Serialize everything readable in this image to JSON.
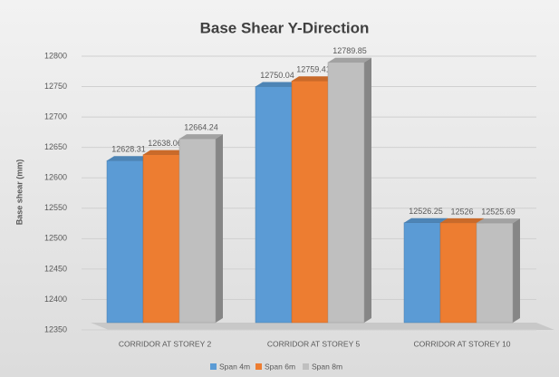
{
  "chart_data": {
    "type": "bar",
    "title": "Base Shear Y-Direction",
    "y_label": "Base shear (mm)",
    "categories": [
      "CORRIDOR AT STOREY 2",
      "CORRIDOR AT STOREY 5",
      "CORRIDOR AT STOREY 10"
    ],
    "series": [
      {
        "name": "Span 4m",
        "color": "#5b9bd5",
        "values": [
          12628.31,
          12750.04,
          12526.25
        ]
      },
      {
        "name": "Span 6m",
        "color": "#ed7d31",
        "values": [
          12638.06,
          12759.41,
          12526
        ]
      },
      {
        "name": "Span 8m",
        "color": "#bfbfbf",
        "values": [
          12664.24,
          12789.85,
          12525.69
        ]
      }
    ],
    "ylim": [
      12350,
      12800
    ],
    "yticks": [
      12350,
      12400,
      12450,
      12500,
      12550,
      12600,
      12650,
      12700,
      12750,
      12800
    ],
    "grid": true,
    "legend": "bottom"
  }
}
